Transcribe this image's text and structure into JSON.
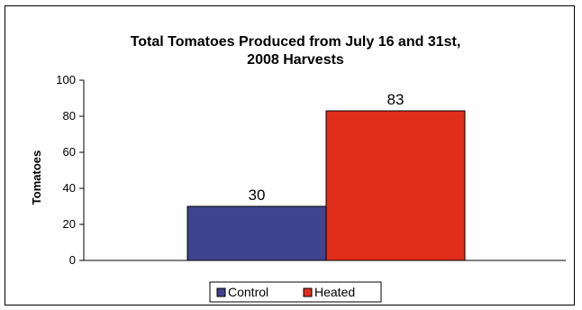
{
  "chart_data": {
    "type": "bar",
    "title": "Total Tomatoes Produced from July 16 and 31st, 2008 Harvests",
    "title_lines": [
      "Total Tomatoes Produced from July 16 and 31st,",
      "2008 Harvests"
    ],
    "xlabel": "",
    "ylabel": "Tomatoes",
    "ylim": [
      0,
      100
    ],
    "yticks": [
      "0",
      "20",
      "40",
      "60",
      "80",
      "100"
    ],
    "series": [
      {
        "name": "Control",
        "values": [
          30
        ],
        "color": "#3F448E"
      },
      {
        "name": "Heated",
        "values": [
          83
        ],
        "color": "#E02E1B"
      }
    ],
    "data_labels": [
      "30",
      "83"
    ],
    "grid": false,
    "legend_position": "bottom"
  }
}
